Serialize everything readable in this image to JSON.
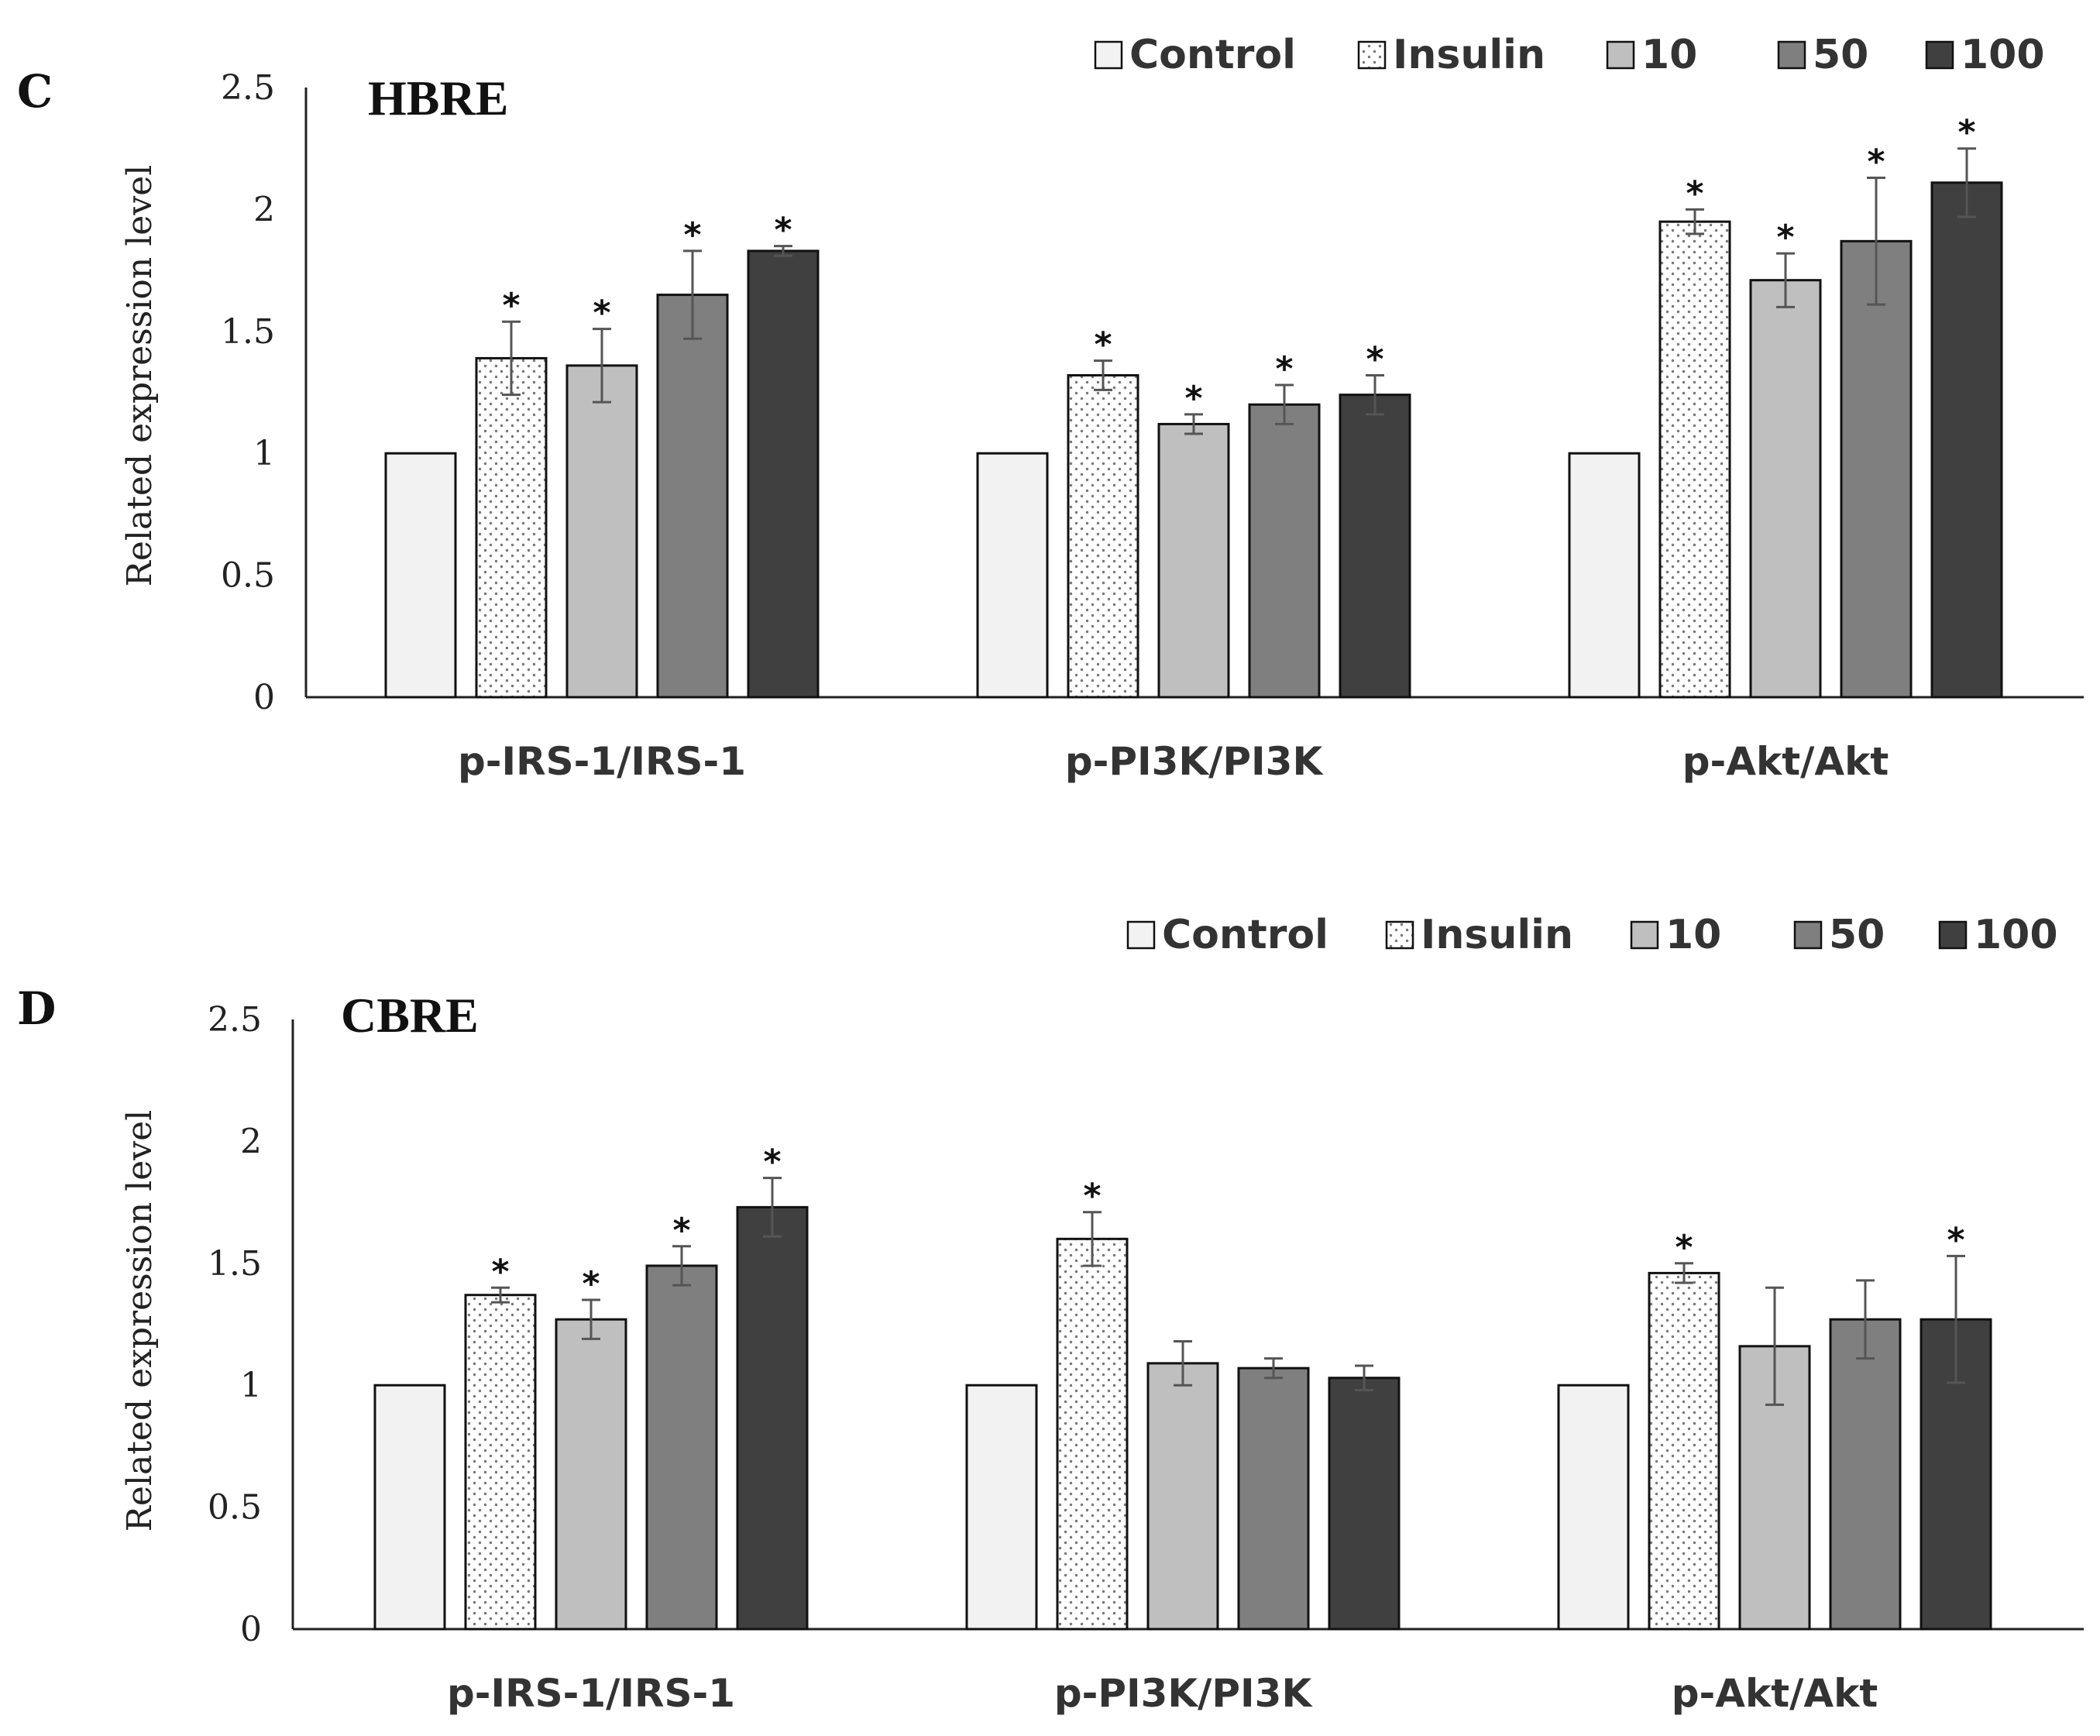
{
  "chart_data": [
    {
      "type": "bar",
      "panel": "C",
      "title": "HBRE",
      "xlabel": "",
      "ylabel": "Related expression level",
      "ylim": [
        0,
        2.5
      ],
      "yticks": [
        "0",
        "0.5",
        "1",
        "1.5",
        "2",
        "2.5"
      ],
      "categories": [
        "p-IRS-1/IRS-1",
        "p-PI3K/PI3K",
        "p-Akt/Akt"
      ],
      "legend_position": "top-right",
      "series": [
        {
          "name": "Control",
          "color": "#f2f2f2",
          "pattern": "none",
          "values": [
            1.0,
            1.0,
            1.0
          ],
          "errors": [
            0,
            0,
            0
          ],
          "significant": [
            false,
            false,
            false
          ]
        },
        {
          "name": "Insulin",
          "color": "#ffffff",
          "pattern": "dots",
          "values": [
            1.39,
            1.32,
            1.95
          ],
          "errors": [
            0.15,
            0.06,
            0.05
          ],
          "significant": [
            true,
            true,
            true
          ]
        },
        {
          "name": "10",
          "color": "#bfbfbf",
          "pattern": "none",
          "values": [
            1.36,
            1.12,
            1.71
          ],
          "errors": [
            0.15,
            0.04,
            0.11
          ],
          "significant": [
            true,
            true,
            true
          ]
        },
        {
          "name": "50",
          "color": "#7f7f7f",
          "pattern": "none",
          "values": [
            1.65,
            1.2,
            1.87
          ],
          "errors": [
            0.18,
            0.08,
            0.26
          ],
          "significant": [
            true,
            true,
            true
          ]
        },
        {
          "name": "100",
          "color": "#404040",
          "pattern": "none",
          "values": [
            1.83,
            1.24,
            2.11
          ],
          "errors": [
            0.02,
            0.08,
            0.14
          ],
          "significant": [
            true,
            true,
            true
          ]
        }
      ],
      "significance_marker": "*"
    },
    {
      "type": "bar",
      "panel": "D",
      "title": "CBRE",
      "xlabel": "",
      "ylabel": "Related expression level",
      "ylim": [
        0,
        2.5
      ],
      "yticks": [
        "0",
        "0.5",
        "1",
        "1.5",
        "2",
        "2.5"
      ],
      "categories": [
        "p-IRS-1/IRS-1",
        "p-PI3K/PI3K",
        "p-Akt/Akt"
      ],
      "legend_position": "top-right",
      "series": [
        {
          "name": "Control",
          "color": "#f2f2f2",
          "pattern": "none",
          "values": [
            1.0,
            1.0,
            1.0
          ],
          "errors": [
            0,
            0,
            0
          ],
          "significant": [
            false,
            false,
            false
          ]
        },
        {
          "name": "Insulin",
          "color": "#ffffff",
          "pattern": "dots",
          "values": [
            1.37,
            1.6,
            1.46
          ],
          "errors": [
            0.03,
            0.11,
            0.04
          ],
          "significant": [
            true,
            true,
            true
          ]
        },
        {
          "name": "10",
          "color": "#bfbfbf",
          "pattern": "none",
          "values": [
            1.27,
            1.09,
            1.16
          ],
          "errors": [
            0.08,
            0.09,
            0.24
          ],
          "significant": [
            true,
            false,
            false
          ]
        },
        {
          "name": "50",
          "color": "#7f7f7f",
          "pattern": "none",
          "values": [
            1.49,
            1.07,
            1.27
          ],
          "errors": [
            0.08,
            0.04,
            0.16
          ],
          "significant": [
            true,
            false,
            false
          ]
        },
        {
          "name": "100",
          "color": "#404040",
          "pattern": "none",
          "values": [
            1.73,
            1.03,
            1.27
          ],
          "errors": [
            0.12,
            0.05,
            0.26
          ],
          "significant": [
            true,
            false,
            true
          ]
        }
      ],
      "significance_marker": "*"
    }
  ]
}
